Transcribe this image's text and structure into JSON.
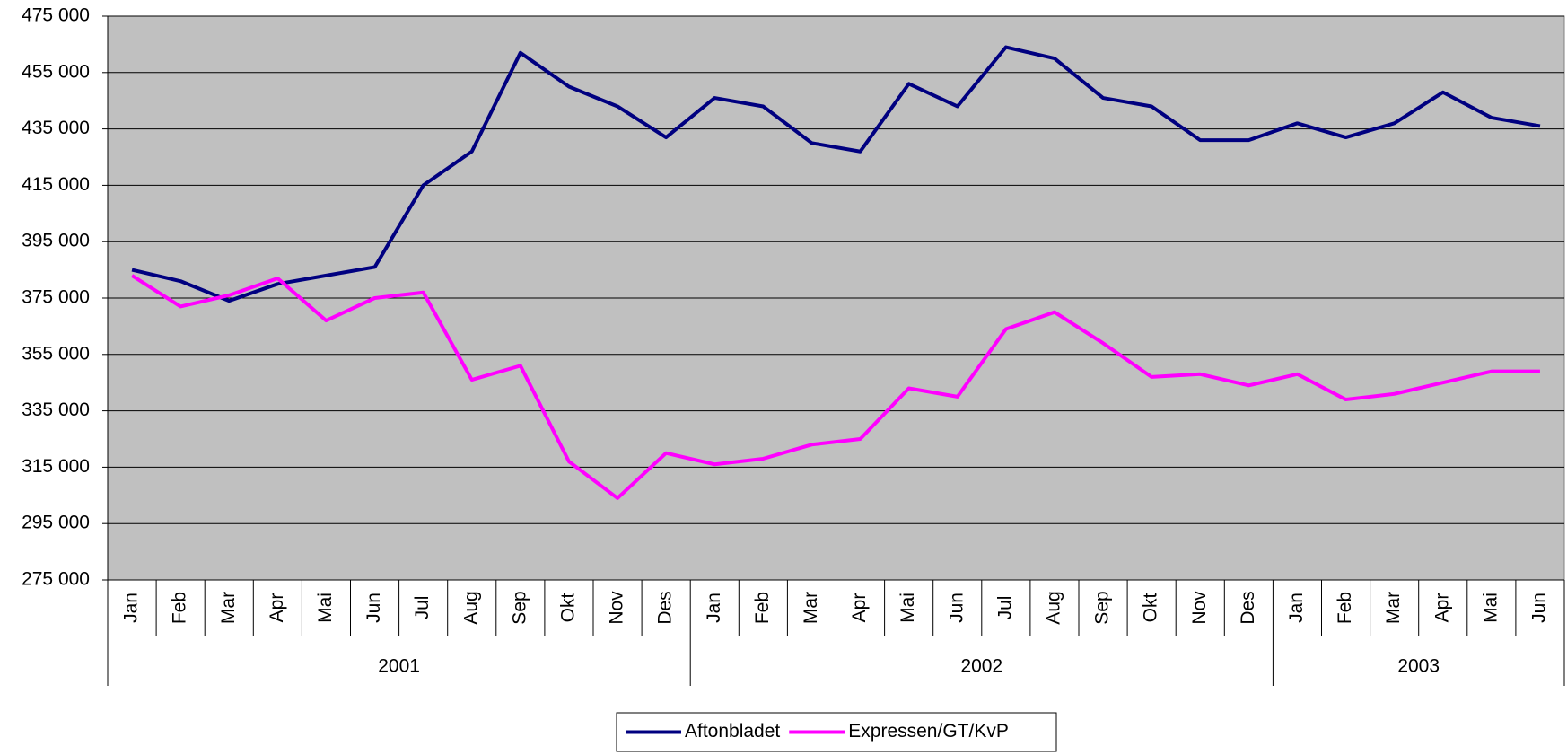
{
  "chart_data": {
    "type": "line",
    "groups": [
      {
        "label": "2001",
        "categories": [
          "Jan",
          "Feb",
          "Mar",
          "Apr",
          "Mai",
          "Jun",
          "Jul",
          "Aug",
          "Sep",
          "Okt",
          "Nov",
          "Des"
        ]
      },
      {
        "label": "2002",
        "categories": [
          "Jan",
          "Feb",
          "Mar",
          "Apr",
          "Mai",
          "Jun",
          "Jul",
          "Aug",
          "Sep",
          "Okt",
          "Nov",
          "Des"
        ]
      },
      {
        "label": "2003",
        "categories": [
          "Jan",
          "Feb",
          "Mar",
          "Apr",
          "Mai",
          "Jun"
        ]
      }
    ],
    "series": [
      {
        "name": "Aftonbladet",
        "color": "#000080",
        "values": [
          385000,
          381000,
          374000,
          380000,
          383000,
          386000,
          415000,
          427000,
          462000,
          450000,
          443000,
          432000,
          446000,
          443000,
          430000,
          427000,
          451000,
          443000,
          464000,
          460000,
          446000,
          443000,
          431000,
          431000,
          437000,
          432000,
          437000,
          448000,
          439000,
          436000
        ]
      },
      {
        "name": "Expressen/GT/KvP",
        "color": "#ff00ff",
        "values": [
          383000,
          372000,
          376000,
          382000,
          367000,
          375000,
          377000,
          346000,
          351000,
          317000,
          304000,
          320000,
          316000,
          318000,
          323000,
          325000,
          343000,
          340000,
          364000,
          370000,
          359000,
          347000,
          348000,
          344000,
          348000,
          339000,
          341000,
          345000,
          349000,
          349000
        ]
      }
    ],
    "ylim": [
      275000,
      475000
    ],
    "yticks": [
      {
        "value": 275000,
        "label": "275 000"
      },
      {
        "value": 295000,
        "label": "295 000"
      },
      {
        "value": 315000,
        "label": "315 000"
      },
      {
        "value": 335000,
        "label": "335 000"
      },
      {
        "value": 355000,
        "label": "355 000"
      },
      {
        "value": 375000,
        "label": "375 000"
      },
      {
        "value": 395000,
        "label": "395 000"
      },
      {
        "value": 415000,
        "label": "415 000"
      },
      {
        "value": 435000,
        "label": "435 000"
      },
      {
        "value": 455000,
        "label": "455 000"
      },
      {
        "value": 475000,
        "label": "475 000"
      }
    ],
    "grid": true,
    "legend": "bottom",
    "plot_background": "#c0c0c0"
  }
}
